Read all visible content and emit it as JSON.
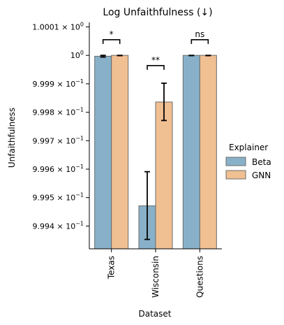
{
  "chart_data": {
    "type": "bar",
    "title": "Log Unfaithfulness (↓)",
    "xlabel": "Dataset",
    "ylabel": "Unfaithfulness",
    "y_scale": "log",
    "ylim": [
      0.99932,
      1.000116
    ],
    "grid": false,
    "legend_position": "right",
    "legend_title": "Explainer",
    "categories": [
      "Texas",
      "Wisconsin",
      "Questions"
    ],
    "y_ticks": [
      {
        "value": 0.9994,
        "mantissa": "9.994",
        "exponent": "−1"
      },
      {
        "value": 0.9995,
        "mantissa": "9.995",
        "exponent": "−1"
      },
      {
        "value": 0.9996,
        "mantissa": "9.996",
        "exponent": "−1"
      },
      {
        "value": 0.9997,
        "mantissa": "9.997",
        "exponent": "−1"
      },
      {
        "value": 0.9998,
        "mantissa": "9.998",
        "exponent": "−1"
      },
      {
        "value": 0.9999,
        "mantissa": "9.999",
        "exponent": "−1"
      },
      {
        "value": 1.0,
        "mantissa": "1",
        "exponent": "0"
      },
      {
        "value": 1.0001,
        "mantissa": "1.0001",
        "exponent": "0"
      }
    ],
    "series": [
      {
        "name": "Beta",
        "color": "#88b1c9",
        "values": [
          0.999997,
          0.999471,
          1.0
        ],
        "error_low": [
          0.999994,
          0.999353,
          0.999999
        ],
        "error_high": [
          1.0,
          0.999591,
          1.0
        ]
      },
      {
        "name": "GNN",
        "color": "#f0bf92",
        "values": [
          1.0,
          0.999836,
          1.0
        ],
        "error_low": [
          0.999999,
          0.999771,
          0.999999
        ],
        "error_high": [
          1.0,
          0.999902,
          1.0
        ]
      }
    ],
    "annotations": [
      {
        "category": "Texas",
        "label": "*",
        "bracket_y": 1.000055
      },
      {
        "category": "Wisconsin",
        "label": "**",
        "bracket_y": 0.999964
      },
      {
        "category": "Questions",
        "label": "ns",
        "bracket_y": 1.000055
      }
    ]
  }
}
